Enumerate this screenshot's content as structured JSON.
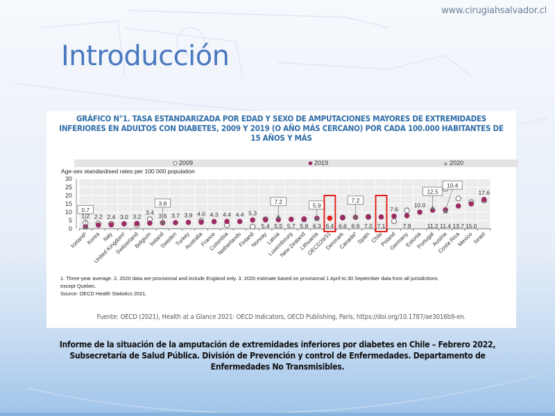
{
  "header": {
    "site_url": "www.cirugiahsalvador.cl",
    "title": "Introducción"
  },
  "figure": {
    "title_lines": [
      "GRÁFICO N°1. TASA ESTANDARIZADA POR EDAD Y SEXO DE AMPUTACIONES MAYORES DE EXTREMIDADES",
      "INFERIORES EN ADULTOS CON DIABETES, 2009 Y 2019 (O AÑO MÁS CERCANO) POR CADA 100.000 HABITANTES DE",
      "15 AÑOS Y MÁS"
    ],
    "notes_lines": [
      "1. Three-year average. 2. 2020 data are provisional and include England only. 3. 2020 estimate based on provisional 1 April to 30 September data from all jurisdictions",
      "except Quebec.",
      "Source: OECD Health Statistics 2021."
    ],
    "fuente": "Fuente: OECD (2021), Health at a Glance 2021: OECD Indicators, OECD Publishing, Paris, https://doi.org/10.1787/ae3016b9-en."
  },
  "chart_data": {
    "type": "scatter",
    "title": "GRÁFICO N°1. TASA ESTANDARIZADA POR EDAD Y SEXO DE AMPUTACIONES MAYORES DE EXTREMIDADES INFERIORES EN ADULTOS CON DIABETES, 2009 Y 2019 (O AÑO MÁS CERCANO) POR CADA 100.000 HABITANTES DE 15 AÑOS Y MÁS",
    "ylabel": "Age-sex standardised rates per 100 000 population",
    "xlabel": "",
    "ylim": [
      0,
      30
    ],
    "yticks": [
      "0",
      "5",
      "10",
      "15",
      "20",
      "25",
      "30"
    ],
    "grid": true,
    "legend": {
      "position": "top",
      "entries": [
        {
          "label": "2009",
          "marker": "open-circle",
          "color": "#ffffff"
        },
        {
          "label": "2019",
          "marker": "filled-circle",
          "color": "#9b2c62"
        },
        {
          "label": "2020",
          "marker": "triangle",
          "color": "#6e6e6e"
        }
      ]
    },
    "highlight_color": "#e0201b",
    "highlighted": [
      "OECD29/31",
      "Chile"
    ],
    "categories": [
      "Iceland¹",
      "Korea",
      "Italy",
      "United Kingdom²",
      "Switzerland",
      "Belgium",
      "Ireland",
      "Sweden",
      "Turkey",
      "Australia",
      "France",
      "Colombia",
      "Netherlands",
      "Finland",
      "Norway",
      "Latvia",
      "Luxembourg",
      "New Zealand",
      "Lithuania",
      "OECD29/31",
      "Denmark",
      "Canada³",
      "Spain",
      "Chile",
      "Poland",
      "Germany",
      "Estonia",
      "Portugal",
      "Austria",
      "Costa Rica",
      "Mexico",
      "Israel"
    ],
    "series": [
      {
        "name": "2019",
        "values": [
          1.2,
          2.2,
          2.4,
          3.0,
          3.2,
          3.4,
          3.6,
          3.7,
          3.9,
          4.0,
          4.3,
          4.4,
          4.4,
          5.3,
          5.4,
          5.5,
          5.7,
          5.9,
          6.3,
          6.4,
          6.6,
          6.9,
          7.0,
          7.1,
          7.6,
          7.9,
          10.0,
          11.2,
          11.4,
          13.7,
          15.0,
          17.6
        ]
      },
      {
        "name": "2009",
        "values": [
          3.5,
          3.2,
          3.0,
          null,
          2.3,
          5.7,
          null,
          null,
          null,
          4.8,
          null,
          2.3,
          null,
          1.3,
          5.7,
          null,
          null,
          5.6,
          null,
          null,
          6.8,
          null,
          7.2,
          null,
          4.6,
          11.0,
          null,
          null,
          24.0,
          18.2,
          16.0,
          17.0
        ]
      },
      {
        "name": "2020",
        "values": [
          0.7,
          null,
          null,
          null,
          null,
          null,
          3.8,
          null,
          null,
          null,
          null,
          null,
          null,
          null,
          null,
          7.2,
          null,
          null,
          5.9,
          null,
          null,
          7.2,
          null,
          null,
          null,
          null,
          null,
          12.5,
          10.4,
          null,
          null,
          null
        ]
      }
    ],
    "value_labels": [
      "1.2",
      "2.2",
      "2.4",
      "3.0",
      "3.2",
      "3.4",
      "3.6",
      "3.7",
      "3.9",
      "4.0",
      "4.3",
      "4.4",
      "4.4",
      "5.3",
      "5.4",
      "5.5",
      "5.7",
      "5.9",
      "6.3",
      "6.4",
      "6.6",
      "6.9",
      "7.0",
      "7.1",
      "7.6",
      "7.9",
      "10.0",
      "11.2",
      "11.4",
      "13.7",
      "15.0",
      "17.6"
    ],
    "label_below": [
      false,
      false,
      false,
      false,
      false,
      false,
      false,
      false,
      false,
      false,
      false,
      false,
      false,
      false,
      true,
      true,
      true,
      true,
      true,
      true,
      true,
      true,
      true,
      true,
      false,
      true,
      false,
      true,
      true,
      true,
      true,
      false
    ],
    "callouts_2020": [
      "0.7",
      "3.8",
      "7.2",
      "5.9",
      "7.2",
      "12.5",
      "10.4"
    ]
  },
  "citation": {
    "lines": [
      "Informe de la situación de la amputación de extremidades inferiores por diabetes en Chile – Febrero 2022,",
      "Subsecretaría de Salud Pública. División de Prevención y control de Enfermedades. Departamento de",
      "Enfermedades No Transmisibles."
    ]
  }
}
